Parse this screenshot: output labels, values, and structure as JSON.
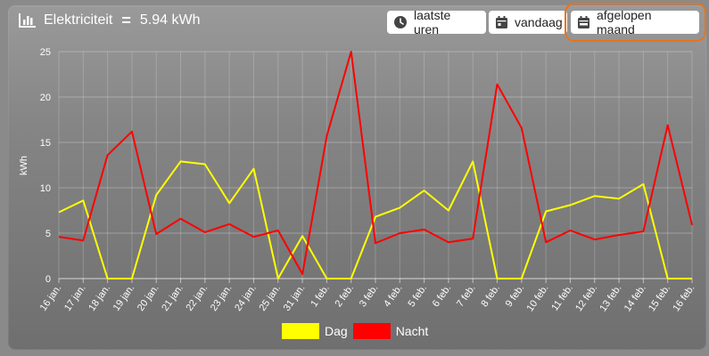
{
  "header": {
    "icon": "bar-chart-icon",
    "title": "Elektriciteit",
    "value": "5.94 kWh"
  },
  "range_buttons": [
    {
      "label": "laatste uren",
      "icon": "clock-icon"
    },
    {
      "label": "vandaag",
      "icon": "calendar-icon"
    },
    {
      "label": "afgelopen maand",
      "icon": "calendar-week-icon",
      "selected": true
    }
  ],
  "colors": {
    "dag": "#ffff00",
    "nacht": "#ff0000",
    "focus": "#e8741a"
  },
  "chart_data": {
    "type": "line",
    "xlabel": "",
    "ylabel": "kWh",
    "ylim": [
      0,
      25
    ],
    "yticks": [
      "0",
      "5",
      "10",
      "15",
      "20",
      "25"
    ],
    "grid": true,
    "legend": "bottom",
    "categories": [
      "16 jan.",
      "17 jan.",
      "18 jan.",
      "19 jan.",
      "20 jan.",
      "21 jan.",
      "22 jan.",
      "23 jan.",
      "24 jan.",
      "25 jan.",
      "31 jan.",
      "1 feb.",
      "2 feb.",
      "3 feb.",
      "4 feb.",
      "5 feb.",
      "6 feb.",
      "7 feb.",
      "8 feb.",
      "9 feb.",
      "10 feb.",
      "11 feb.",
      "12 feb.",
      "13 feb.",
      "14 feb.",
      "15 feb.",
      "16 feb."
    ],
    "series": [
      {
        "name": "Dag",
        "values": [
          7.3,
          8.6,
          0,
          0,
          9.2,
          12.9,
          12.6,
          8.3,
          12.1,
          0,
          4.7,
          0,
          0,
          6.8,
          7.8,
          9.7,
          7.5,
          12.9,
          0,
          0,
          7.4,
          8.1,
          9.1,
          8.8,
          10.4,
          0,
          0
        ]
      },
      {
        "name": "Nacht",
        "values": [
          4.6,
          4.2,
          13.6,
          16.2,
          4.9,
          6.6,
          5.1,
          6.0,
          4.6,
          5.3,
          0.5,
          15.7,
          25.0,
          3.9,
          5.0,
          5.4,
          4.0,
          4.4,
          21.4,
          16.6,
          4.0,
          5.3,
          4.3,
          4.8,
          5.2,
          16.9,
          5.9
        ]
      }
    ]
  }
}
